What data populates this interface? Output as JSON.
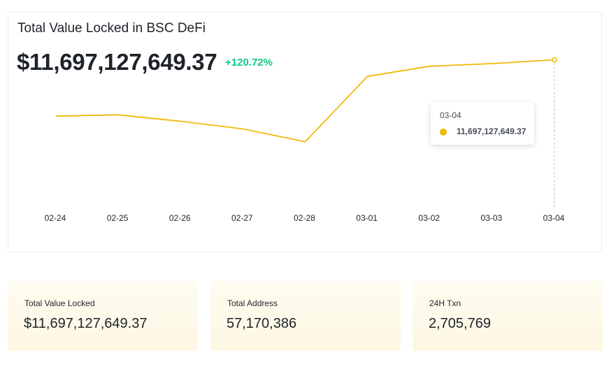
{
  "header": {
    "title": "Total Value Locked in BSC DeFi",
    "value": "$11,697,127,649.37",
    "change": "+120.72%"
  },
  "colors": {
    "line": "#f0b90b",
    "positive": "#0ecb81",
    "text": "#1e2329"
  },
  "chart_data": {
    "type": "line",
    "title": "Total Value Locked in BSC DeFi",
    "xlabel": "",
    "ylabel": "",
    "categories": [
      "02-24",
      "02-25",
      "02-26",
      "02-27",
      "02-28",
      "03-01",
      "03-02",
      "03-03",
      "03-04"
    ],
    "series": [
      {
        "values": [
          7.3,
          7.4,
          6.9,
          6.3,
          5.3,
          10.4,
          11.2,
          11.4,
          11.697
        ]
      }
    ],
    "ylim": [
      0,
      12
    ],
    "grid": false,
    "legend": "none",
    "highlight_index": 8
  },
  "tooltip": {
    "date": "03-04",
    "value": "11,697,127,649.37"
  },
  "stats": [
    {
      "label": "Total Value Locked",
      "value": "$11,697,127,649.37"
    },
    {
      "label": "Total Address",
      "value": "57,170,386"
    },
    {
      "label": "24H Txn",
      "value": "2,705,769"
    }
  ]
}
